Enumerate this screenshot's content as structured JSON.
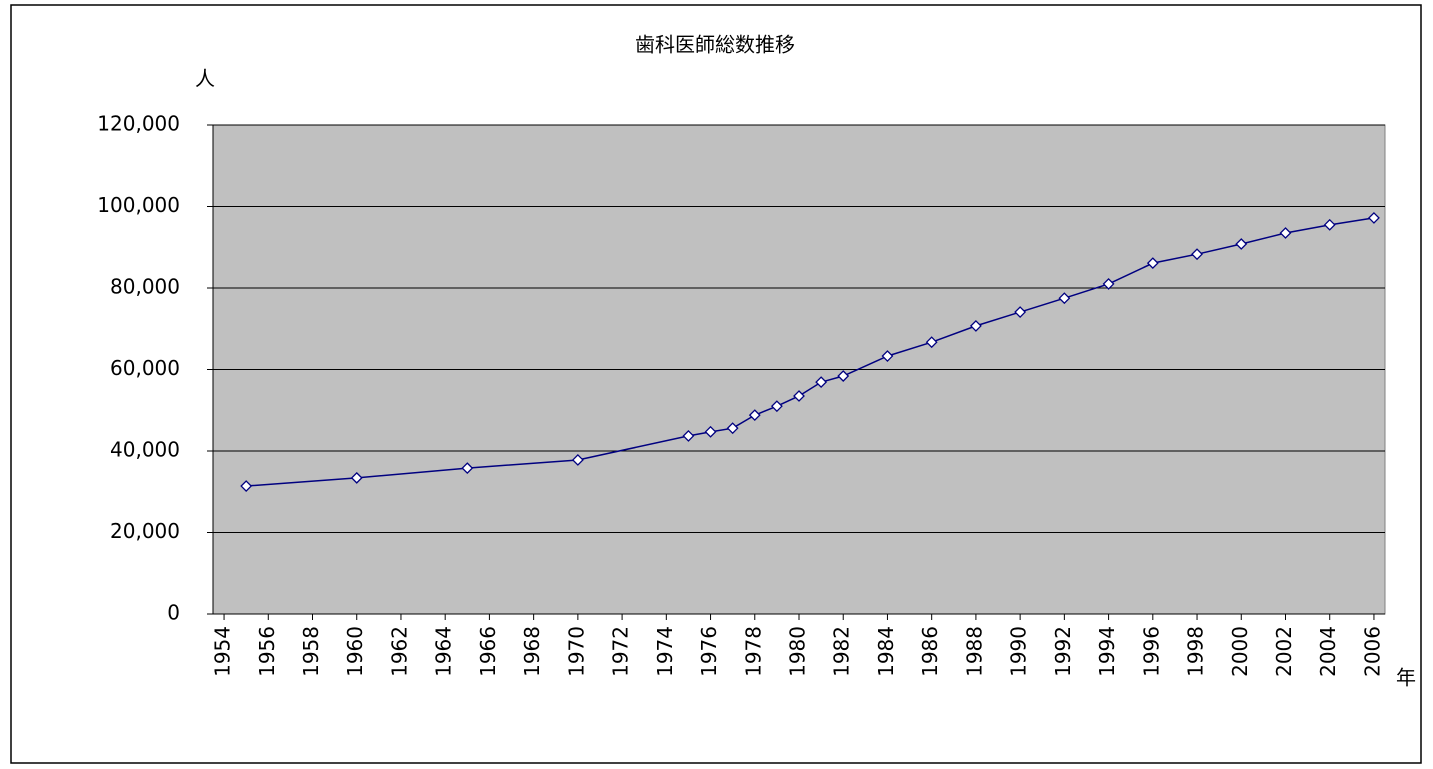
{
  "chart_data": {
    "type": "line",
    "title": "歯科医師総数推移",
    "y_label": "人",
    "x_label": "年",
    "x": [
      1955,
      1960,
      1965,
      1970,
      1975,
      1976,
      1977,
      1978,
      1979,
      1980,
      1981,
      1982,
      1984,
      1986,
      1988,
      1990,
      1992,
      1994,
      1996,
      1998,
      2000,
      2002,
      2004,
      2006
    ],
    "series": [
      {
        "name": "歯科医師総数",
        "color": "#000080",
        "values": [
          31400,
          33400,
          35800,
          37800,
          43700,
          44700,
          45600,
          48800,
          51000,
          53500,
          56900,
          58400,
          63300,
          66700,
          70700,
          74100,
          77500,
          81000,
          86100,
          88300,
          90800,
          93500,
          95500,
          97200
        ]
      }
    ],
    "xlim": [
      1953.5,
      2006.5
    ],
    "xticks": [
      1954,
      1956,
      1958,
      1960,
      1962,
      1964,
      1966,
      1968,
      1970,
      1972,
      1974,
      1976,
      1978,
      1980,
      1982,
      1984,
      1986,
      1988,
      1990,
      1992,
      1994,
      1996,
      1998,
      2000,
      2002,
      2004,
      2006
    ],
    "ylim": [
      0,
      120000
    ],
    "yticks": [
      0,
      {
        "value": 20000,
        "label": "20,000"
      },
      {
        "value": 40000,
        "label": "40,000"
      },
      {
        "value": 60000,
        "label": "60,000"
      },
      {
        "value": 80000,
        "label": "80,000"
      },
      {
        "value": 100000,
        "label": "100,000"
      },
      {
        "value": 120000,
        "label": "120,000"
      }
    ],
    "grid": true
  }
}
